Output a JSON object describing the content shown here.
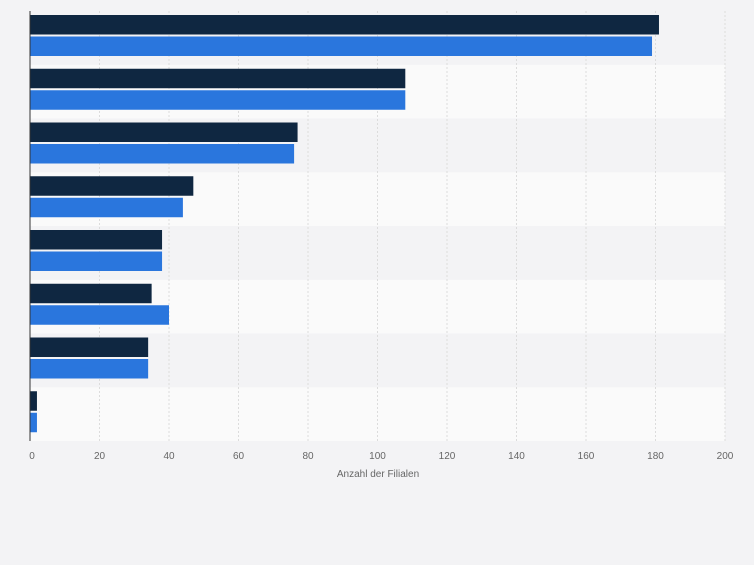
{
  "chart_data": {
    "type": "bar",
    "orientation": "horizontal",
    "categories": [
      "",
      "",
      "",
      "",
      "",
      "",
      "",
      ""
    ],
    "series": [
      {
        "name": "",
        "color": "#0f2741",
        "values": [
          181,
          108,
          77,
          47,
          38,
          35,
          34,
          2
        ]
      },
      {
        "name": "",
        "color": "#2a76dd",
        "values": [
          179,
          108,
          76,
          44,
          38,
          40,
          34,
          2
        ]
      }
    ],
    "xlabel": "Anzahl der Filialen",
    "ylabel": "",
    "xlim": [
      0,
      200
    ],
    "xticks": [
      0,
      20,
      40,
      60,
      80,
      100,
      120,
      140,
      160,
      180,
      200
    ],
    "grid": true,
    "legend": "none"
  }
}
